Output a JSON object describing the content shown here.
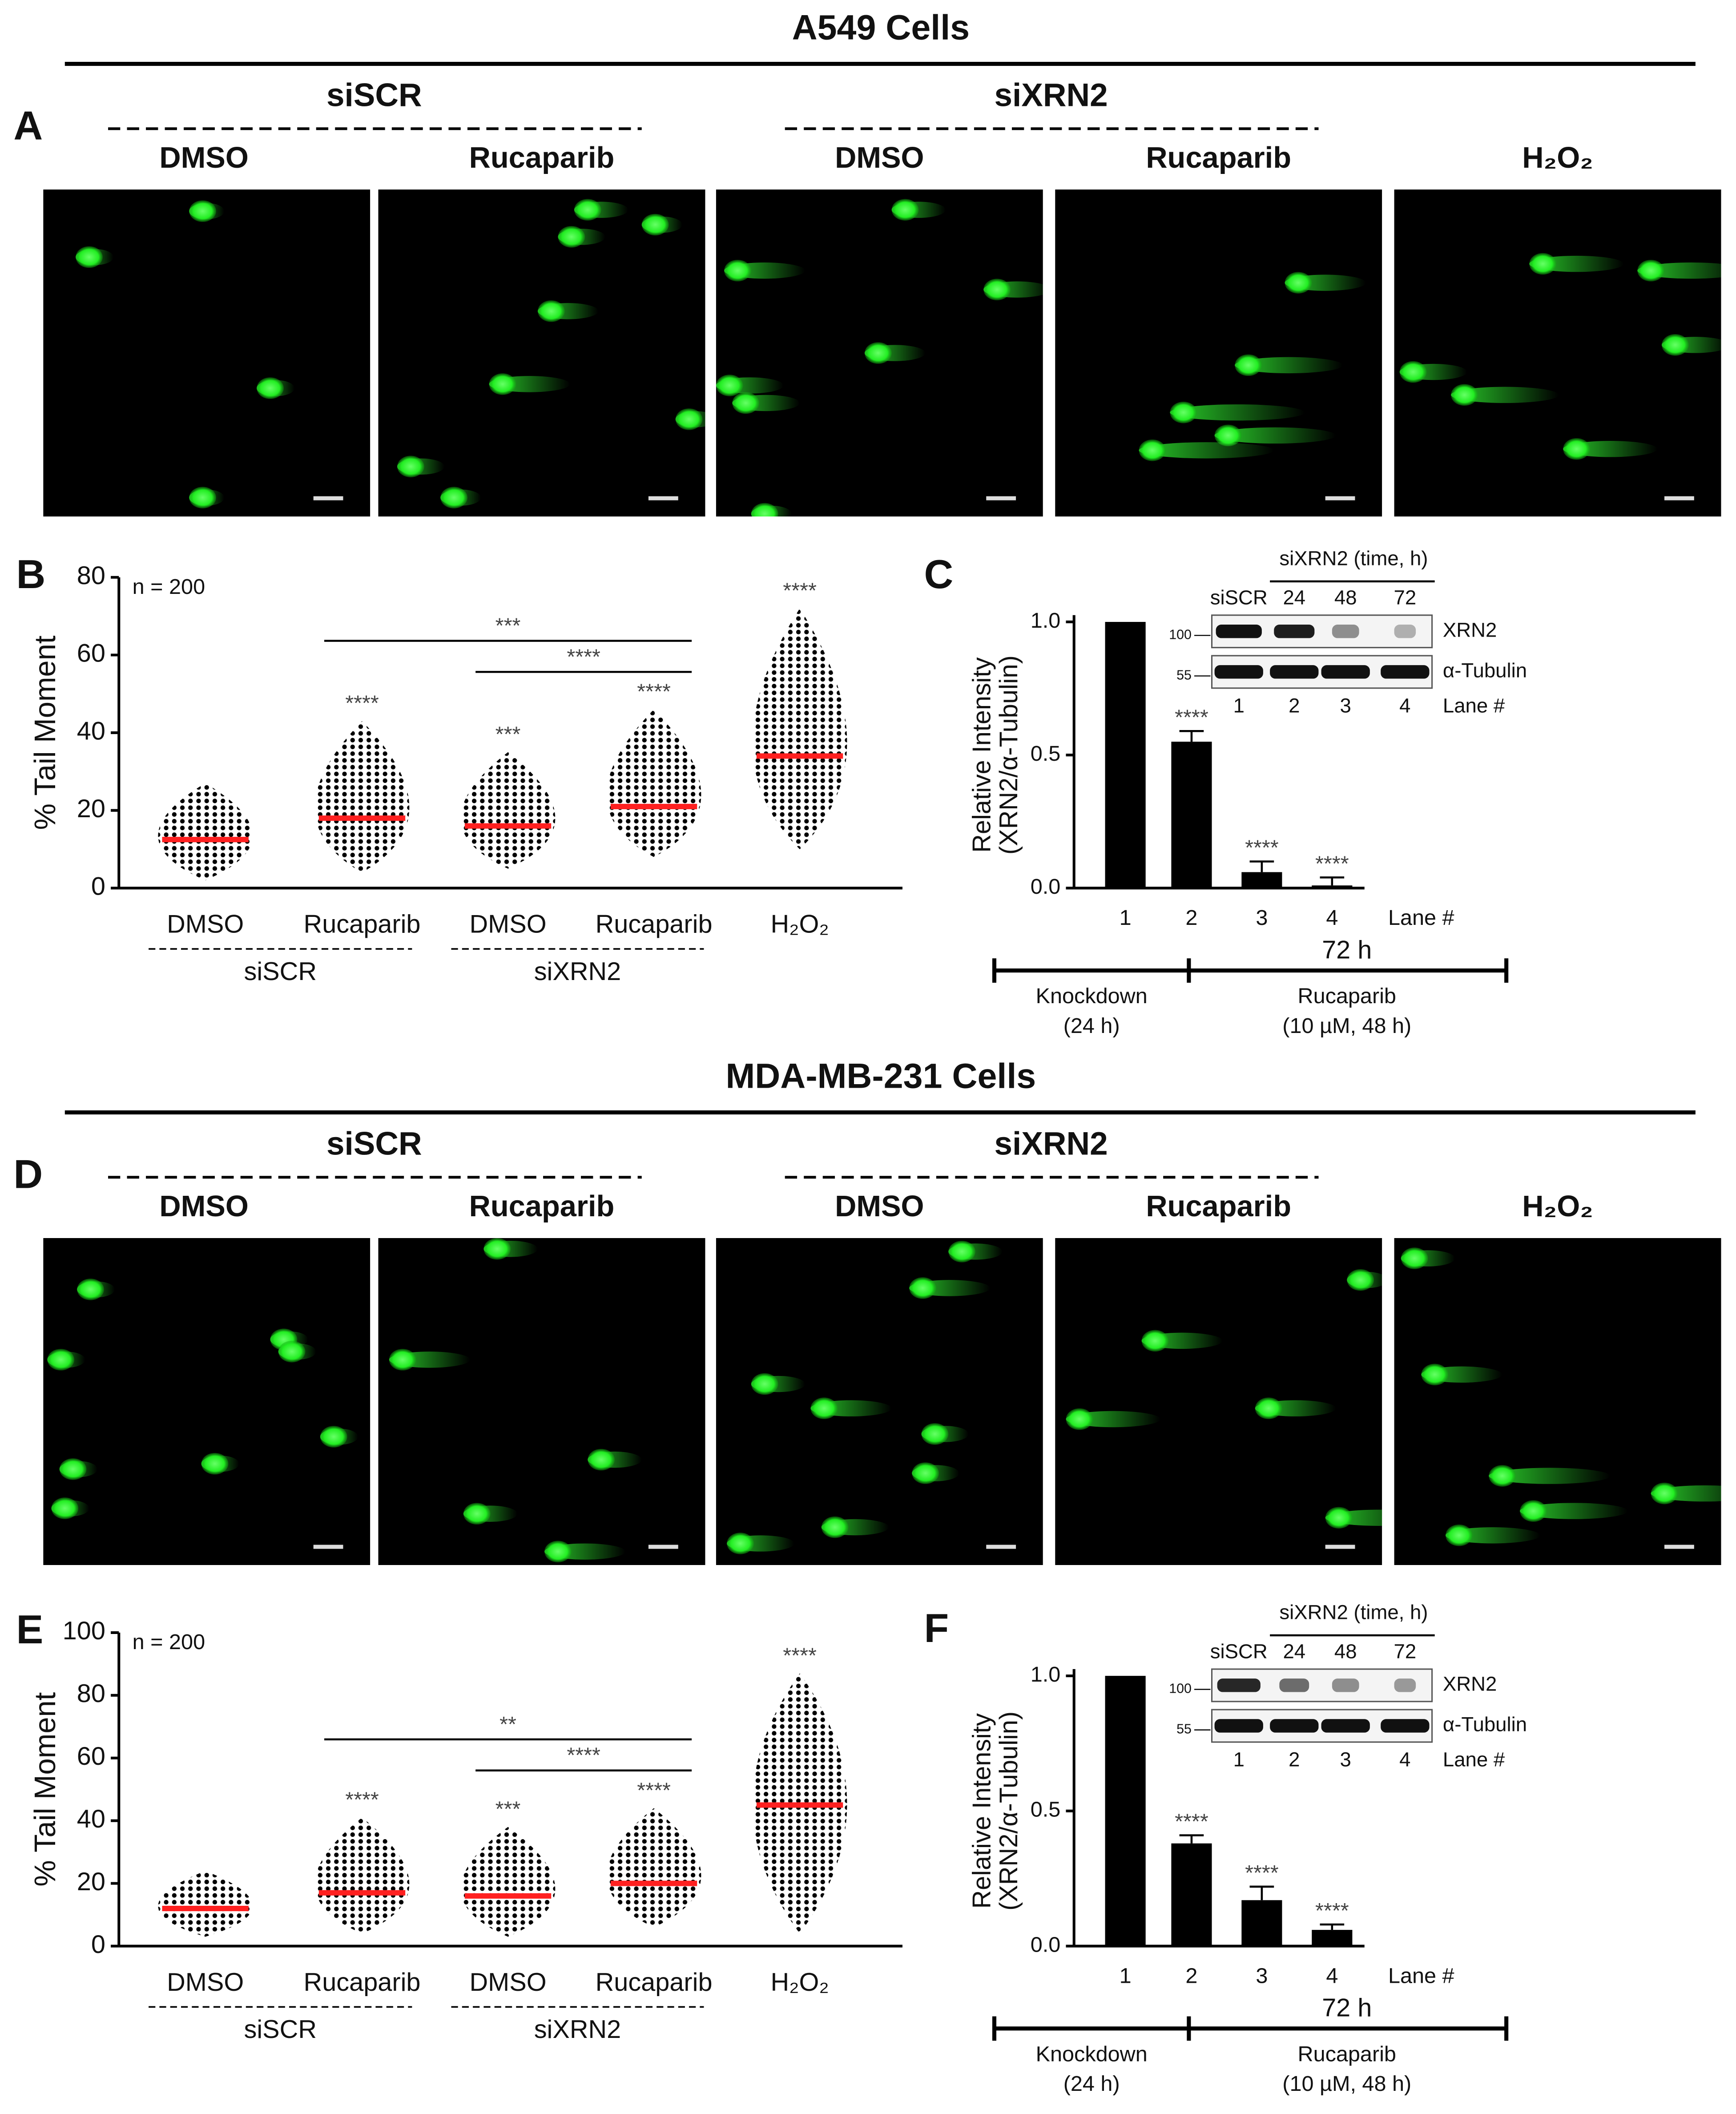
{
  "sections": [
    {
      "title": "A549 Cells",
      "letter": "A",
      "groups": [
        "siSCR",
        "siXRN2"
      ],
      "conditions": [
        "DMSO",
        "Rucaparib",
        "DMSO",
        "Rucaparib",
        "H₂O₂"
      ]
    },
    {
      "title": "MDA-MB-231 Cells",
      "letter": "D",
      "groups": [
        "siSCR",
        "siXRN2"
      ],
      "conditions": [
        "DMSO",
        "Rucaparib",
        "DMSO",
        "Rucaparib",
        "H₂O₂"
      ]
    }
  ],
  "chart_data": [
    {
      "type": "dot_plot",
      "letter": "B",
      "ylabel": "% Tail Moment",
      "note": "n = 200",
      "categories": [
        "DMSO",
        "Rucaparib",
        "DMSO",
        "Rucaparib",
        "H₂O₂"
      ],
      "groups": [
        "siSCR",
        "siXRN2"
      ],
      "means": [
        12.5,
        18,
        16,
        21,
        34
      ],
      "mins": [
        2,
        4,
        5,
        8,
        10
      ],
      "maxs": [
        27,
        43,
        35,
        46,
        72
      ],
      "significance": [
        null,
        "****",
        "***",
        "****",
        "****"
      ],
      "comparisons": [
        "***",
        "****"
      ],
      "ylim": [
        0,
        80
      ],
      "yticks": [
        0,
        20,
        40,
        60,
        80
      ],
      "color": "#000000",
      "mean_color": "#ff2020"
    },
    {
      "type": "bar",
      "letter": "C",
      "ylabel": [
        "Relative Intensity",
        "(XRN2/α-Tubulin)"
      ],
      "xlabel": "Lane #",
      "categories": [
        "1",
        "2",
        "3",
        "4"
      ],
      "values": [
        1.0,
        0.55,
        0.06,
        0.01
      ],
      "errors": [
        0,
        0.04,
        0.04,
        0.03
      ],
      "significance": [
        null,
        "****",
        "****",
        "****"
      ],
      "ylim": [
        0,
        1
      ],
      "yticks": [
        {
          "value": 0,
          "label": "0.0"
        },
        {
          "value": 0.5,
          "label": "0.5"
        },
        {
          "value": 1,
          "label": "1.0"
        }
      ],
      "color": "#000000",
      "inset": {
        "header": "siXRN2 (time, h)",
        "lanes": [
          "siSCR",
          "24",
          "48",
          "72"
        ],
        "rows": [
          "XRN2",
          "α-Tubulin"
        ],
        "markers": [
          "100",
          "55"
        ],
        "lane_numbers": [
          "1",
          "2",
          "3",
          "4"
        ],
        "lane_label": "Lane #"
      },
      "timeline": {
        "total": "72 h",
        "phases": [
          [
            "Knockdown",
            "(24 h)"
          ],
          [
            "Rucaparib",
            "(10 µM, 48 h)"
          ]
        ]
      }
    },
    {
      "type": "dot_plot",
      "letter": "E",
      "ylabel": "% Tail Moment",
      "note": "n = 200",
      "categories": [
        "DMSO",
        "Rucaparib",
        "DMSO",
        "Rucaparib",
        "H₂O₂"
      ],
      "groups": [
        "siSCR",
        "siXRN2"
      ],
      "means": [
        12,
        17,
        16,
        20,
        45
      ],
      "mins": [
        3,
        4,
        3,
        6,
        4
      ],
      "maxs": [
        24,
        41,
        38,
        44,
        87
      ],
      "significance": [
        null,
        "****",
        "***",
        "****",
        "****"
      ],
      "comparisons": [
        "**",
        "****"
      ],
      "ylim": [
        0,
        100
      ],
      "yticks": [
        0,
        20,
        40,
        60,
        80,
        100
      ],
      "color": "#000000",
      "mean_color": "#ff2020"
    },
    {
      "type": "bar",
      "letter": "F",
      "ylabel": [
        "Relative Intensity",
        "(XRN2/α-Tubulin)"
      ],
      "xlabel": "Lane #",
      "categories": [
        "1",
        "2",
        "3",
        "4"
      ],
      "values": [
        1.0,
        0.38,
        0.17,
        0.06
      ],
      "errors": [
        0,
        0.03,
        0.05,
        0.02
      ],
      "significance": [
        null,
        "****",
        "****",
        "****"
      ],
      "ylim": [
        0,
        1
      ],
      "yticks": [
        {
          "value": 0,
          "label": "0.0"
        },
        {
          "value": 0.5,
          "label": "0.5"
        },
        {
          "value": 1,
          "label": "1.0"
        }
      ],
      "color": "#000000",
      "inset": {
        "header": "siXRN2 (time, h)",
        "lanes": [
          "siSCR",
          "24",
          "48",
          "72"
        ],
        "rows": [
          "XRN2",
          "α-Tubulin"
        ],
        "markers": [
          "100",
          "55"
        ],
        "lane_numbers": [
          "1",
          "2",
          "3",
          "4"
        ],
        "lane_label": "Lane #"
      },
      "timeline": {
        "total": "72 h",
        "phases": [
          [
            "Knockdown",
            "(24 h)"
          ],
          [
            "Rucaparib",
            "(10 µM, 48 h)"
          ]
        ]
      }
    }
  ]
}
